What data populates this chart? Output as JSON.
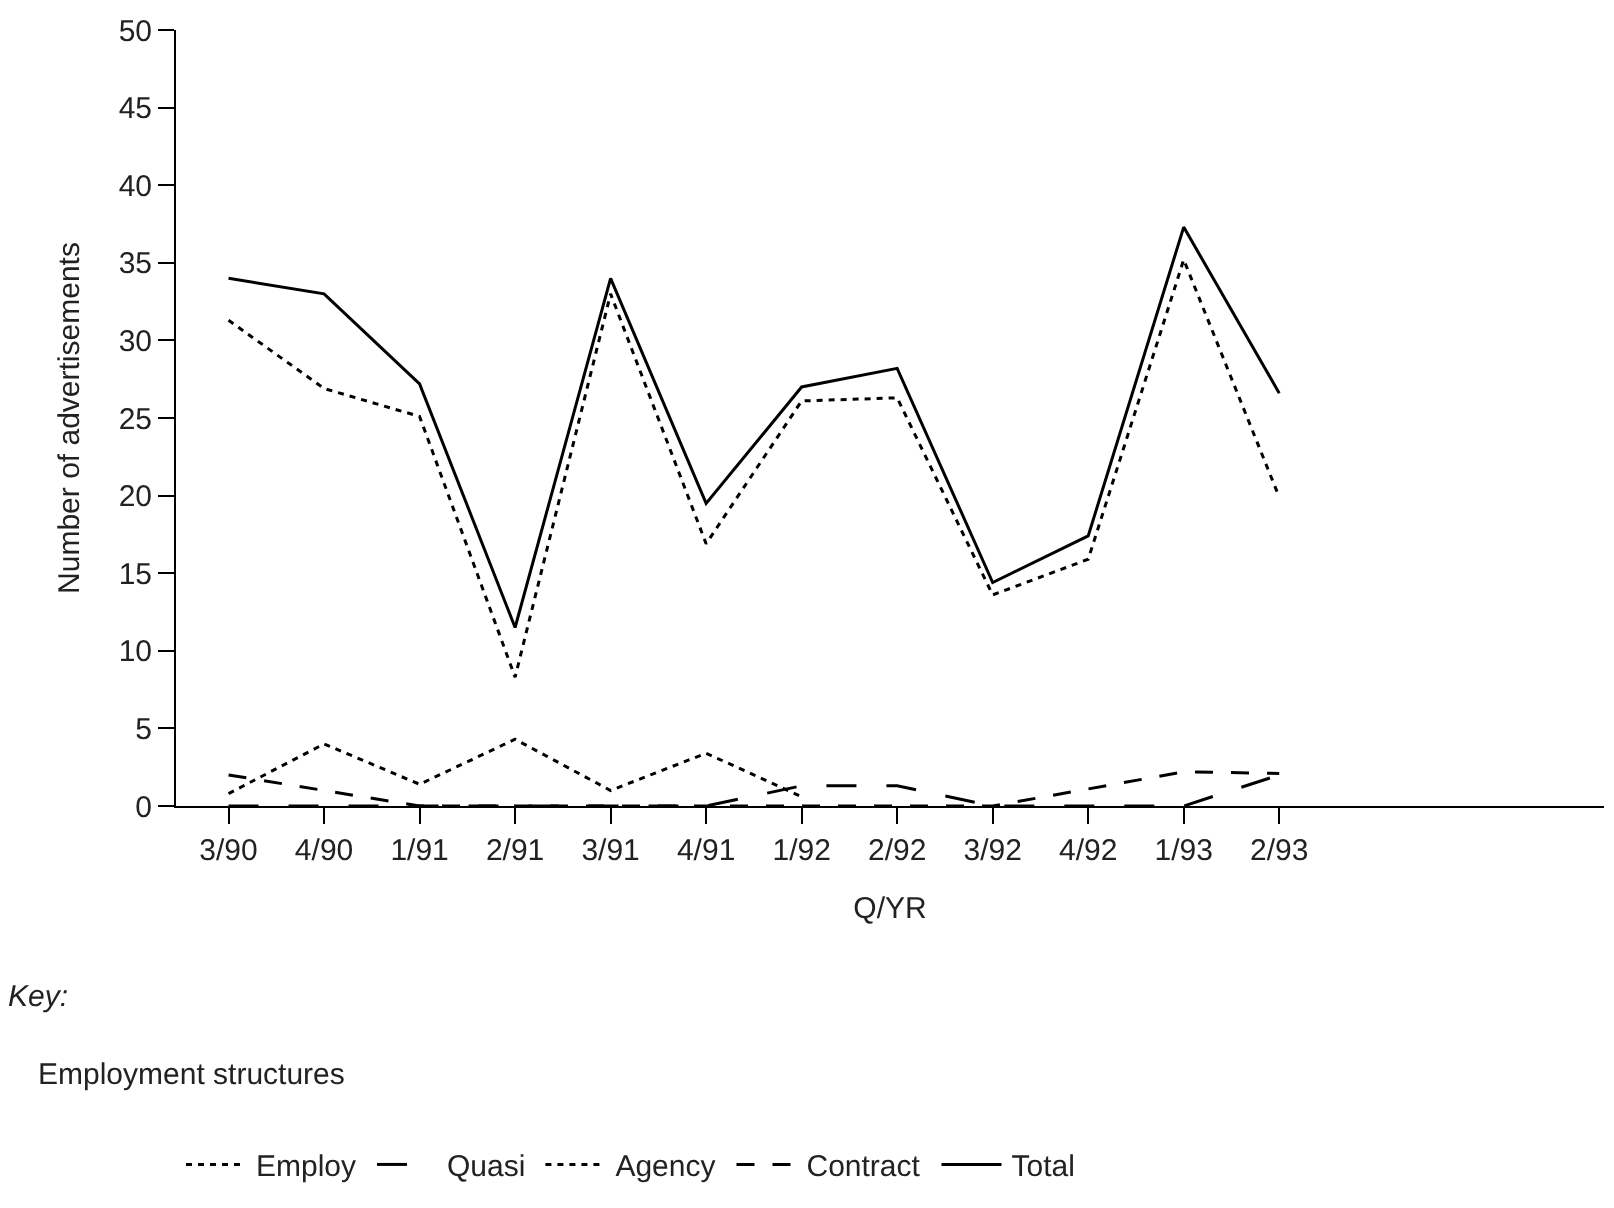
{
  "chart_data": {
    "type": "line",
    "xlabel": "Q/YR",
    "ylabel": "Number of advertisements",
    "legend_title": "Employment structures",
    "annotations": [
      "Key:"
    ],
    "categories": [
      "3/90",
      "4/90",
      "1/91",
      "2/91",
      "3/91",
      "4/91",
      "1/92",
      "2/92",
      "3/92",
      "4/92",
      "1/93",
      "2/93"
    ],
    "ylim": [
      0,
      50
    ],
    "yticks": [
      0,
      5,
      10,
      15,
      20,
      25,
      30,
      35,
      40,
      45,
      50
    ],
    "legend": "bottom",
    "marker": "none",
    "series": [
      {
        "name": "Employ",
        "color": "#000000",
        "line_style": "dotted",
        "values": [
          31.3,
          26.9,
          25.1,
          8.3,
          33,
          16.9,
          26.1,
          26.3,
          13.6,
          15.9,
          35.2,
          19.9
        ]
      },
      {
        "name": "Quasi",
        "color": "#000000",
        "line_style": "long dashed",
        "values": [
          0,
          0,
          0,
          0,
          0,
          0,
          1.3,
          1.3,
          0,
          0,
          0,
          2
        ]
      },
      {
        "name": "Agency",
        "color": "#000000",
        "line_style": "short dashed",
        "values": [
          0.8,
          4,
          1.4,
          4.3,
          1,
          3.4,
          0.6,
          null,
          null,
          null,
          null,
          null
        ]
      },
      {
        "name": "Contract",
        "color": "#000000",
        "line_style": "dashed",
        "values": [
          2,
          1,
          0,
          0,
          0,
          0,
          0,
          0,
          0,
          1.1,
          2.2,
          2.1
        ]
      },
      {
        "name": "Total",
        "color": "#000000",
        "line_style": "solid",
        "values": [
          34,
          33,
          27.2,
          11.5,
          34,
          19.5,
          27,
          28.2,
          14.4,
          17.4,
          37.3,
          26.6
        ]
      }
    ]
  }
}
